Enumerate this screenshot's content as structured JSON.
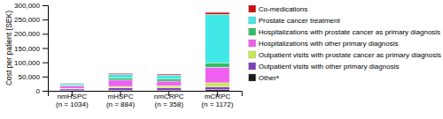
{
  "chart_data": {
    "type": "bar",
    "stacked": true,
    "grid": false,
    "legend": "upper right",
    "ylabel": "Cost per patient (SEK)",
    "categories": [
      "nmHSPC\n(n = 1034)",
      "mHSPC\n(n = 884)",
      "nmCRPC\n(n = 358)",
      "mCRPC\n(n = 1172)"
    ],
    "series": [
      {
        "name": "Otherᵃ",
        "color": "#1a1a1a",
        "values": [
          1500,
          2500,
          2000,
          4000
        ]
      },
      {
        "name": "Outpatient visits with other primary diagnosis",
        "color": "#8040c0",
        "values": [
          5000,
          8000,
          8000,
          10000
        ]
      },
      {
        "name": "Outpatient visits with prostate cancer as primary diagnosis",
        "color": "#c8e850",
        "values": [
          2500,
          5000,
          8000,
          14000
        ]
      },
      {
        "name": "Hospitalizations with other primary diagnosis",
        "color": "#f060f0",
        "values": [
          8000,
          22000,
          16000,
          55000
        ]
      },
      {
        "name": "Hospitalizations with prostate cancer as primary diagnosis",
        "color": "#30c060",
        "values": [
          4000,
          8000,
          8000,
          15000
        ]
      },
      {
        "name": "Prostate cancer treatment",
        "color": "#40e8e8",
        "values": [
          4000,
          12000,
          13000,
          170000
        ]
      },
      {
        "name": "Co-medications",
        "color": "#cc1010",
        "values": [
          2000,
          3500,
          3500,
          7000
        ]
      }
    ],
    "ylim": [
      0,
      300000
    ],
    "yticks": [
      0,
      {
        "value": 50000,
        "label": "50,000"
      },
      {
        "value": 100000,
        "label": "100,000"
      },
      {
        "value": 150000,
        "label": "150,000"
      },
      {
        "value": 200000,
        "label": "200,000"
      },
      {
        "value": 250000,
        "label": "250,000"
      },
      {
        "value": 300000,
        "label": "300,000"
      }
    ]
  }
}
